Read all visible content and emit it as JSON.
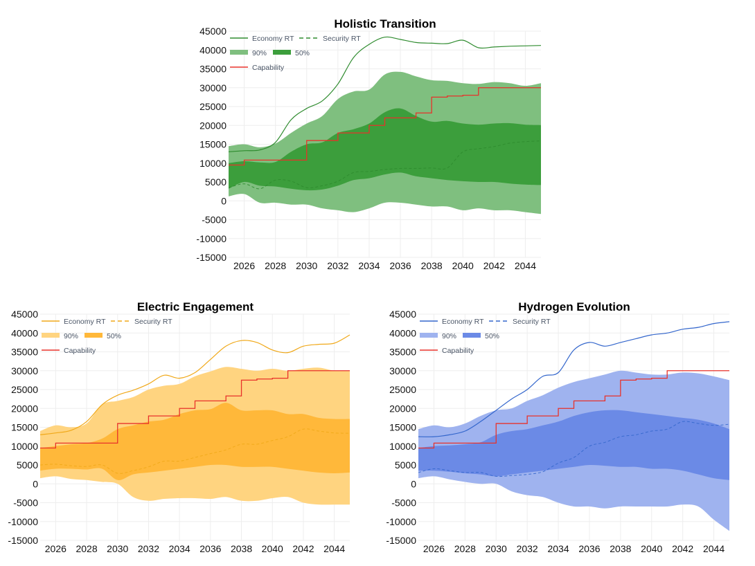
{
  "chart_data": [
    {
      "type": "area",
      "title": "Holistic Transition",
      "ylim": [
        -15000,
        45000
      ],
      "xlim": [
        2025,
        2045
      ],
      "grid": true,
      "legend_position": "top-left",
      "xticks": [
        "2026",
        "2028",
        "2030",
        "2032",
        "2034",
        "2036",
        "2038",
        "2040",
        "2042",
        "2044"
      ],
      "yticks": [
        "45000",
        "40000",
        "35000",
        "30000",
        "25000",
        "20000",
        "15000",
        "10000",
        "5000",
        "0",
        "-5000",
        "-10000",
        "-15000"
      ],
      "colors": {
        "line": "#2e8b2e",
        "band90": "#7fbf7f",
        "band50": "#3c9e3c",
        "capability": "#e8312a"
      },
      "legend": {
        "economy": "Economy RT",
        "security": "Security RT",
        "p90": "90%",
        "p50": "50%",
        "capability": "Capability"
      },
      "x": [
        2025,
        2026,
        2027,
        2028,
        2029,
        2030,
        2031,
        2032,
        2033,
        2034,
        2035,
        2036,
        2037,
        2038,
        2039,
        2040,
        2041,
        2042,
        2043,
        2044,
        2045
      ],
      "series": [
        {
          "name": "Economy RT",
          "values": [
            13000,
            13300,
            13500,
            15500,
            21500,
            24500,
            26500,
            31000,
            38000,
            41500,
            43400,
            42800,
            42000,
            41800,
            41700,
            42600,
            40600,
            40800,
            41000,
            41100,
            41200
          ]
        },
        {
          "name": "Security RT",
          "values": [
            3500,
            4500,
            3200,
            5500,
            5200,
            3500,
            4000,
            5200,
            7500,
            7800,
            8300,
            8600,
            8600,
            8700,
            8700,
            13000,
            13800,
            14400,
            15300,
            15700,
            15900
          ]
        },
        {
          "name": "90% upper",
          "values": [
            14500,
            15000,
            14200,
            15200,
            18000,
            20500,
            22500,
            27000,
            29000,
            29500,
            33500,
            34200,
            33000,
            32000,
            31800,
            31200,
            31000,
            31500,
            31200,
            30500,
            31200
          ]
        },
        {
          "name": "50% upper",
          "values": [
            10000,
            10500,
            10200,
            10300,
            13000,
            15000,
            15500,
            18000,
            19000,
            20500,
            23500,
            24500,
            22500,
            21000,
            21200,
            20500,
            20200,
            20500,
            20600,
            20200,
            20100
          ]
        },
        {
          "name": "50% lower",
          "values": [
            3200,
            5000,
            4000,
            3800,
            3200,
            2800,
            3000,
            4000,
            5500,
            6000,
            7000,
            7500,
            6500,
            6000,
            5500,
            5200,
            5000,
            5000,
            4600,
            4300,
            4200
          ]
        },
        {
          "name": "90% lower",
          "values": [
            1200,
            1800,
            -500,
            -500,
            -1000,
            -1000,
            -2000,
            -2500,
            -3000,
            -2000,
            -500,
            -500,
            -1000,
            -1500,
            -1500,
            -2500,
            -2000,
            -2500,
            -2500,
            -3000,
            -3500
          ]
        },
        {
          "name": "Capability",
          "values": [
            9500,
            10800,
            10800,
            10800,
            10800,
            16000,
            16000,
            18000,
            18000,
            20000,
            22000,
            22000,
            23300,
            27500,
            27800,
            28000,
            30000,
            30000,
            30000,
            30000,
            30000
          ]
        }
      ]
    },
    {
      "type": "area",
      "title": "Electric Engagement",
      "ylim": [
        -15000,
        45000
      ],
      "xlim": [
        2025,
        2045
      ],
      "grid": true,
      "legend_position": "top-left",
      "xticks": [
        "2026",
        "2028",
        "2030",
        "2032",
        "2034",
        "2036",
        "2038",
        "2040",
        "2042",
        "2044"
      ],
      "yticks": [
        "45000",
        "40000",
        "35000",
        "30000",
        "25000",
        "20000",
        "15000",
        "10000",
        "5000",
        "0",
        "-5000",
        "-10000",
        "-15000"
      ],
      "colors": {
        "line": "#f0a818",
        "band90": "#ffd480",
        "band50": "#ffb83a",
        "capability": "#e8312a"
      },
      "legend": {
        "economy": "Economy RT",
        "security": "Security RT",
        "p90": "90%",
        "p50": "50%",
        "capability": "Capability"
      },
      "x": [
        2025,
        2026,
        2027,
        2028,
        2029,
        2030,
        2031,
        2032,
        2033,
        2034,
        2035,
        2036,
        2037,
        2038,
        2039,
        2040,
        2041,
        2042,
        2043,
        2044,
        2045
      ],
      "series": [
        {
          "name": "Economy RT",
          "values": [
            13000,
            13500,
            14200,
            16500,
            21000,
            23500,
            24800,
            26500,
            28800,
            28000,
            29500,
            33000,
            36500,
            38000,
            37500,
            35500,
            34800,
            36500,
            37000,
            37300,
            39500
          ]
        },
        {
          "name": "Security RT",
          "values": [
            5000,
            5200,
            4800,
            4600,
            5000,
            2800,
            3500,
            4500,
            6000,
            6000,
            7000,
            8000,
            9000,
            10500,
            10500,
            11500,
            12500,
            14500,
            14000,
            13500,
            13400
          ]
        },
        {
          "name": "90% upper",
          "values": [
            14000,
            15500,
            15000,
            16000,
            21000,
            22000,
            23000,
            25000,
            26000,
            26500,
            28500,
            29800,
            31000,
            30500,
            30000,
            30500,
            30000,
            30500,
            30800,
            30000,
            30000
          ]
        },
        {
          "name": "50% upper",
          "values": [
            9500,
            10000,
            10500,
            10800,
            12000,
            14500,
            15500,
            16500,
            17000,
            18500,
            19500,
            19800,
            21500,
            19500,
            19500,
            19500,
            18500,
            18500,
            17500,
            17200,
            17200
          ]
        },
        {
          "name": "50% lower",
          "values": [
            3500,
            4000,
            4000,
            3800,
            4000,
            1000,
            2500,
            3000,
            3500,
            4000,
            4500,
            5000,
            5000,
            4500,
            4500,
            4500,
            4000,
            3500,
            3000,
            2800,
            3000
          ]
        },
        {
          "name": "90% lower",
          "values": [
            1500,
            2000,
            1300,
            1000,
            500,
            0,
            -3500,
            -4500,
            -4000,
            -3800,
            -3800,
            -4000,
            -3500,
            -4500,
            -4500,
            -3800,
            -3500,
            -5000,
            -5500,
            -5500,
            -5500
          ]
        },
        {
          "name": "Capability",
          "values": [
            9500,
            10800,
            10800,
            10800,
            10800,
            16000,
            16000,
            18000,
            18000,
            20000,
            22000,
            22000,
            23300,
            27500,
            27800,
            28000,
            30000,
            30000,
            30000,
            30000,
            30000
          ]
        }
      ]
    },
    {
      "type": "area",
      "title": "Hydrogen Evolution",
      "ylim": [
        -15000,
        45000
      ],
      "xlim": [
        2025,
        2045
      ],
      "grid": true,
      "legend_position": "top-left",
      "xticks": [
        "2026",
        "2028",
        "2030",
        "2032",
        "2034",
        "2036",
        "2038",
        "2040",
        "2042",
        "2044"
      ],
      "yticks": [
        "45000",
        "40000",
        "35000",
        "30000",
        "25000",
        "20000",
        "15000",
        "10000",
        "5000",
        "0",
        "-5000",
        "-10000",
        "-15000"
      ],
      "colors": {
        "line": "#3366cc",
        "band90": "#9fb3ef",
        "band50": "#6b8ae6",
        "capability": "#e8312a"
      },
      "legend": {
        "economy": "Economy RT",
        "security": "Security RT",
        "p90": "90%",
        "p50": "50%",
        "capability": "Capability"
      },
      "x": [
        2025,
        2026,
        2027,
        2028,
        2029,
        2030,
        2031,
        2032,
        2033,
        2034,
        2035,
        2036,
        2037,
        2038,
        2039,
        2040,
        2041,
        2042,
        2043,
        2044,
        2045
      ],
      "series": [
        {
          "name": "Economy RT",
          "values": [
            12500,
            12500,
            13000,
            14000,
            16500,
            19500,
            22500,
            25000,
            28500,
            29500,
            35500,
            37500,
            36500,
            37500,
            38500,
            39500,
            40000,
            41000,
            41500,
            42500,
            43000
          ]
        },
        {
          "name": "Security RT",
          "values": [
            3000,
            4000,
            3500,
            3000,
            3000,
            2000,
            2200,
            2500,
            3200,
            5500,
            7000,
            10000,
            11000,
            12500,
            13000,
            14000,
            14500,
            16500,
            16000,
            15500,
            15800
          ]
        },
        {
          "name": "90% upper",
          "values": [
            14500,
            15500,
            15000,
            16000,
            18000,
            19500,
            20000,
            22000,
            23500,
            25500,
            27000,
            28000,
            29000,
            30000,
            29500,
            29000,
            29000,
            29500,
            29300,
            28500,
            27500
          ]
        },
        {
          "name": "50% upper",
          "values": [
            9500,
            10000,
            10200,
            10500,
            11000,
            13000,
            14000,
            14500,
            15500,
            16500,
            18000,
            19000,
            19500,
            19500,
            19000,
            18500,
            18000,
            17500,
            17000,
            16000,
            14500
          ]
        },
        {
          "name": "50% lower",
          "values": [
            3500,
            3500,
            3200,
            2800,
            2500,
            2000,
            2500,
            3000,
            3500,
            4000,
            4500,
            5000,
            4800,
            4500,
            4500,
            4000,
            4000,
            3500,
            2500,
            1500,
            1000
          ]
        },
        {
          "name": "90% lower",
          "values": [
            1500,
            2000,
            1200,
            500,
            0,
            0,
            -2000,
            -3000,
            -3500,
            -5000,
            -6000,
            -6000,
            -6500,
            -6000,
            -6000,
            -6000,
            -6000,
            -5500,
            -6000,
            -9500,
            -12500
          ]
        },
        {
          "name": "Capability",
          "values": [
            9500,
            10800,
            10800,
            10800,
            10800,
            16000,
            16000,
            18000,
            18000,
            20000,
            22000,
            22000,
            23300,
            27500,
            27800,
            28000,
            30000,
            30000,
            30000,
            30000,
            30000
          ]
        }
      ]
    }
  ]
}
